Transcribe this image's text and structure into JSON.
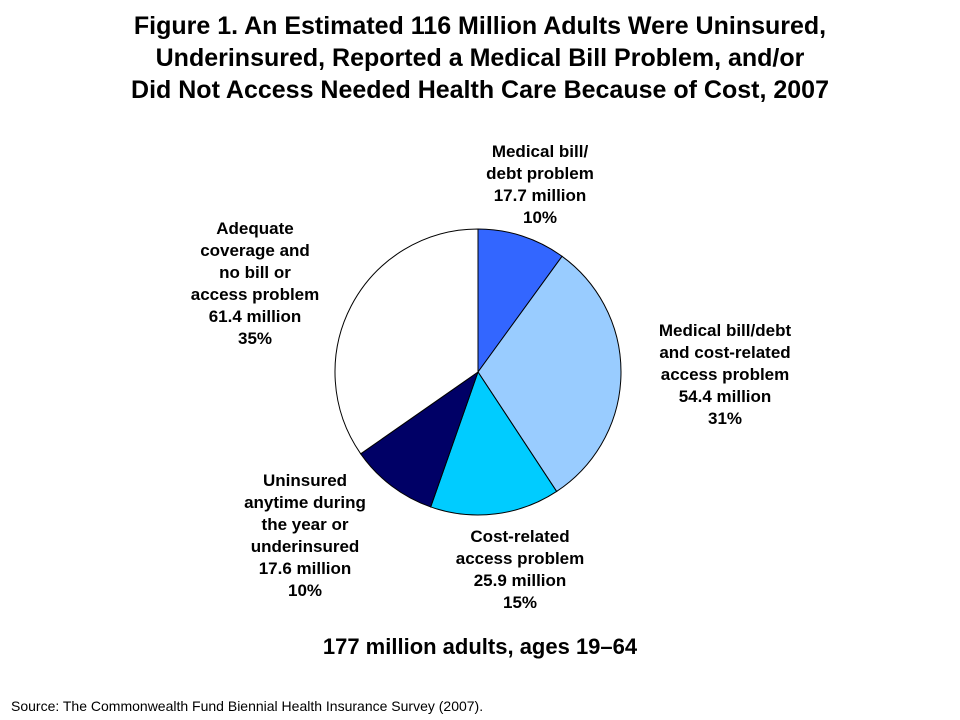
{
  "title_lines": [
    "Figure 1. An Estimated 116 Million Adults Were Uninsured,",
    "Underinsured, Reported a Medical Bill Problem, and/or",
    "Did Not Access Needed Health Care Because of Cost, 2007"
  ],
  "subtitle": "177 million adults, ages 19–64",
  "source": "Source: The Commonwealth Fund Biennial Health Insurance Survey (2007).",
  "chart_data": {
    "type": "pie",
    "units": "million adults",
    "total": 177,
    "slices": [
      {
        "label": "Medical bill/debt problem",
        "value": 17.7,
        "value_text": "17.7 million",
        "percent": 10,
        "percent_text": "10%",
        "color": "#3366ff",
        "label_lines": [
          "Medical bill/",
          "debt problem",
          "17.7 million",
          "10%"
        ]
      },
      {
        "label": "Medical bill/debt and cost-related access problem",
        "value": 54.4,
        "value_text": "54.4 million",
        "percent": 31,
        "percent_text": "31%",
        "color": "#99ccff",
        "label_lines": [
          "Medical bill/debt",
          "and cost-related",
          "access problem",
          "54.4 million",
          "31%"
        ]
      },
      {
        "label": "Cost-related access problem",
        "value": 25.9,
        "value_text": "25.9 million",
        "percent": 15,
        "percent_text": "15%",
        "color": "#00ccff",
        "label_lines": [
          "Cost-related",
          "access problem",
          "25.9 million",
          "15%"
        ]
      },
      {
        "label": "Uninsured anytime during the year or underinsured",
        "value": 17.6,
        "value_text": "17.6 million",
        "percent": 10,
        "percent_text": "10%",
        "color": "#000066",
        "label_lines": [
          "Uninsured",
          "anytime during",
          "the year or",
          "underinsured",
          "17.6 million",
          "10%"
        ]
      },
      {
        "label": "Adequate coverage and no bill or access problem",
        "value": 61.4,
        "value_text": "61.4 million",
        "percent": 35,
        "percent_text": "35%",
        "color": "#ffffff",
        "label_lines": [
          "Adequate",
          "coverage and",
          "no bill or",
          "access problem",
          "61.4 million",
          "35%"
        ]
      }
    ]
  }
}
